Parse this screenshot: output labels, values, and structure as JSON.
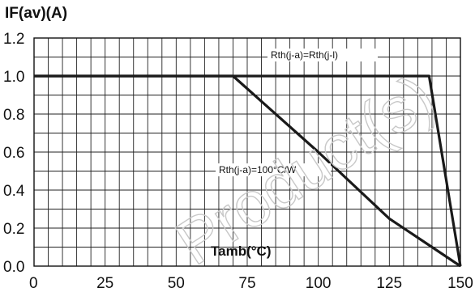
{
  "chart_data": {
    "type": "line",
    "title": "",
    "ylabel": "IF(av)(A)",
    "xlabel": "Tamb(°C)",
    "xlim": [
      0,
      150
    ],
    "ylim": [
      0,
      1.2
    ],
    "x_ticks": [
      "0",
      "25",
      "50",
      "75",
      "100",
      "125",
      "150"
    ],
    "y_ticks": [
      "0.0",
      "0.2",
      "0.4",
      "0.6",
      "0.8",
      "1.0",
      "1.2"
    ],
    "grid": true,
    "series": [
      {
        "name": "Rth(j-a)=Rth(j-l)",
        "points": [
          [
            0,
            1.0
          ],
          [
            139,
            1.0
          ],
          [
            150,
            0.0
          ]
        ]
      },
      {
        "name": "Rth(j-a)=100°C/W",
        "points": [
          [
            0,
            1.0
          ],
          [
            70,
            1.0
          ],
          [
            100,
            0.6
          ],
          [
            125,
            0.25
          ],
          [
            150,
            0.0
          ]
        ]
      }
    ],
    "watermark": "Product(s)"
  }
}
